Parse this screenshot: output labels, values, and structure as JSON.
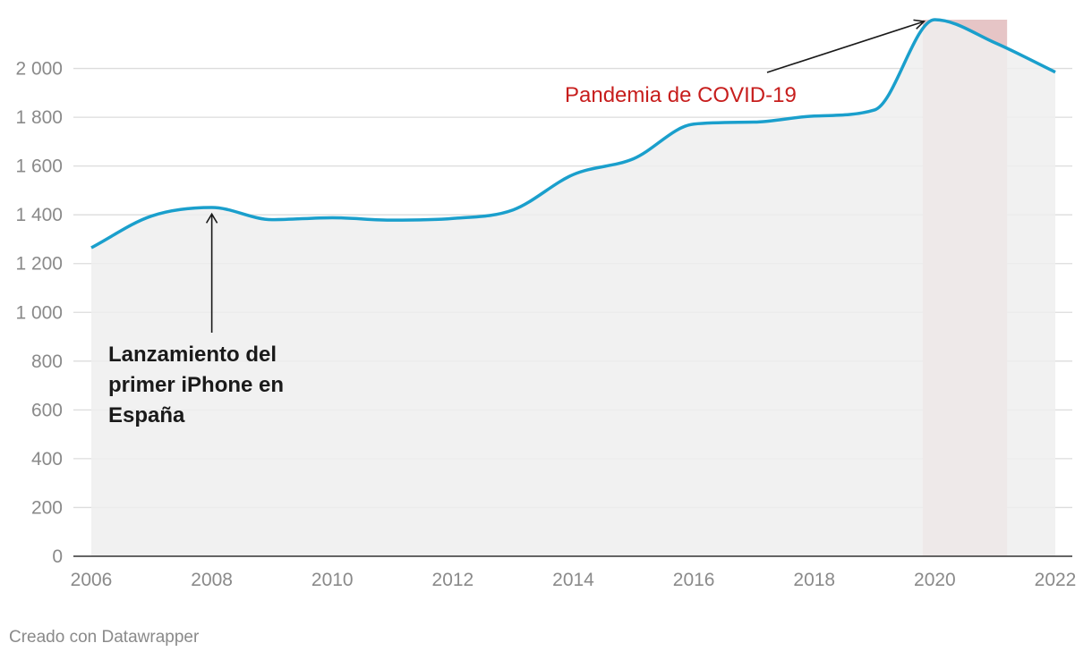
{
  "chart_data": {
    "type": "area",
    "title": "",
    "xlabel": "",
    "ylabel": "",
    "x": [
      2006,
      2007,
      2008,
      2009,
      2010,
      2011,
      2012,
      2013,
      2014,
      2015,
      2016,
      2017,
      2018,
      2019,
      2020,
      2021,
      2022
    ],
    "values": [
      1265,
      1395,
      1430,
      1380,
      1388,
      1378,
      1385,
      1420,
      1565,
      1630,
      1772,
      1780,
      1805,
      1830,
      2200,
      2105,
      1985
    ],
    "xlim": [
      2006,
      2022
    ],
    "ylim": [
      0,
      2200
    ],
    "x_ticks": [
      2006,
      2008,
      2010,
      2012,
      2014,
      2016,
      2018,
      2020,
      2022
    ],
    "y_ticks": [
      0,
      200,
      400,
      600,
      800,
      1000,
      1200,
      1400,
      1600,
      1800,
      2000
    ],
    "y_tick_labels": [
      "0",
      "200",
      "400",
      "600",
      "800",
      "1 000",
      "1 200",
      "1 400",
      "1 600",
      "1 800",
      "2 000"
    ],
    "grid": true,
    "highlight_range": [
      2019.8,
      2021.2
    ],
    "colors": {
      "line": "#1a9fcc",
      "area": "#efefef",
      "highlight": "#e6c5c6",
      "grid": "#dcdcdc",
      "annotation_red": "#c71e1d",
      "annotation_black": "#1a1a1a"
    },
    "annotations": [
      {
        "lines": [
          "Lanzamiento del",
          "primer iPhone en",
          "España"
        ],
        "x": 2008,
        "y": 1425,
        "style": "bold"
      },
      {
        "lines": [
          "Pandemia de COVID-19"
        ],
        "x": 2020,
        "y": 2200,
        "style": "red"
      }
    ]
  },
  "footer": {
    "credit": "Creado con Datawrapper"
  }
}
